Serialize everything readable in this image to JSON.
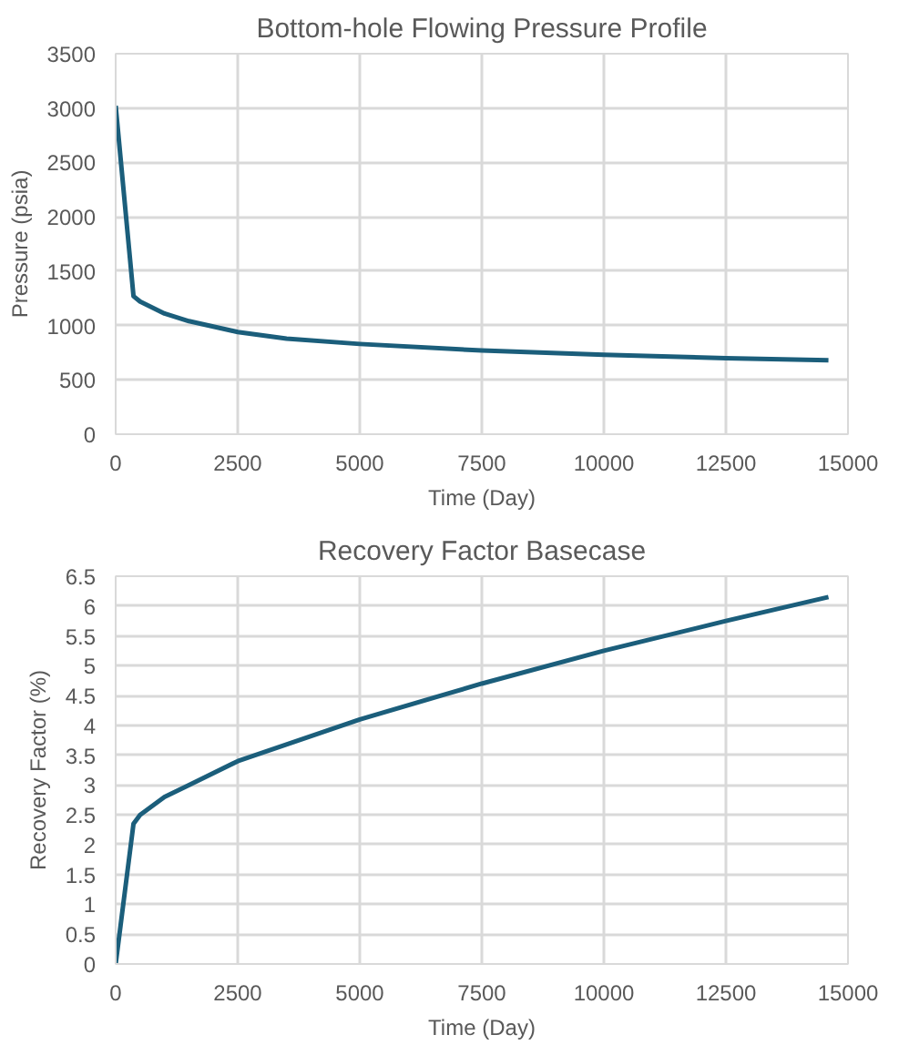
{
  "chart_data": [
    {
      "type": "line",
      "title": "Bottom-hole Flowing Pressure Profile",
      "xlabel": "Time (Day)",
      "ylabel": "Pressure (psia)",
      "x": [
        0,
        365,
        500,
        1000,
        1500,
        2000,
        2500,
        3500,
        5000,
        7500,
        10000,
        12500,
        14600
      ],
      "series": [
        {
          "color": "#1b5e7b",
          "values": [
            3020,
            1270,
            1220,
            1110,
            1040,
            990,
            940,
            880,
            830,
            770,
            730,
            700,
            680
          ]
        }
      ],
      "xlim": [
        0,
        15000
      ],
      "xticks": [
        0,
        2500,
        5000,
        7500,
        10000,
        12500,
        15000
      ],
      "ylim": [
        0,
        3500
      ],
      "yticks": [
        0,
        500,
        1000,
        1500,
        2000,
        2500,
        3000,
        3500
      ],
      "grid": true
    },
    {
      "type": "line",
      "title": "Recovery Factor Basecase",
      "xlabel": "Time (Day)",
      "ylabel": "Recovery Factor (%)",
      "x": [
        0,
        365,
        500,
        1000,
        1500,
        2500,
        5000,
        7500,
        10000,
        12500,
        14600
      ],
      "series": [
        {
          "color": "#1b5e7b",
          "values": [
            0,
            2.35,
            2.5,
            2.8,
            3.0,
            3.4,
            4.1,
            4.7,
            5.25,
            5.75,
            6.15
          ]
        }
      ],
      "xlim": [
        0,
        15000
      ],
      "xticks": [
        0,
        2500,
        5000,
        7500,
        10000,
        12500,
        15000
      ],
      "ylim": [
        0,
        6.5
      ],
      "yticks": [
        0,
        0.5,
        1,
        1.5,
        2,
        2.5,
        3,
        3.5,
        4,
        4.5,
        5,
        5.5,
        6,
        6.5
      ],
      "grid": true
    }
  ]
}
